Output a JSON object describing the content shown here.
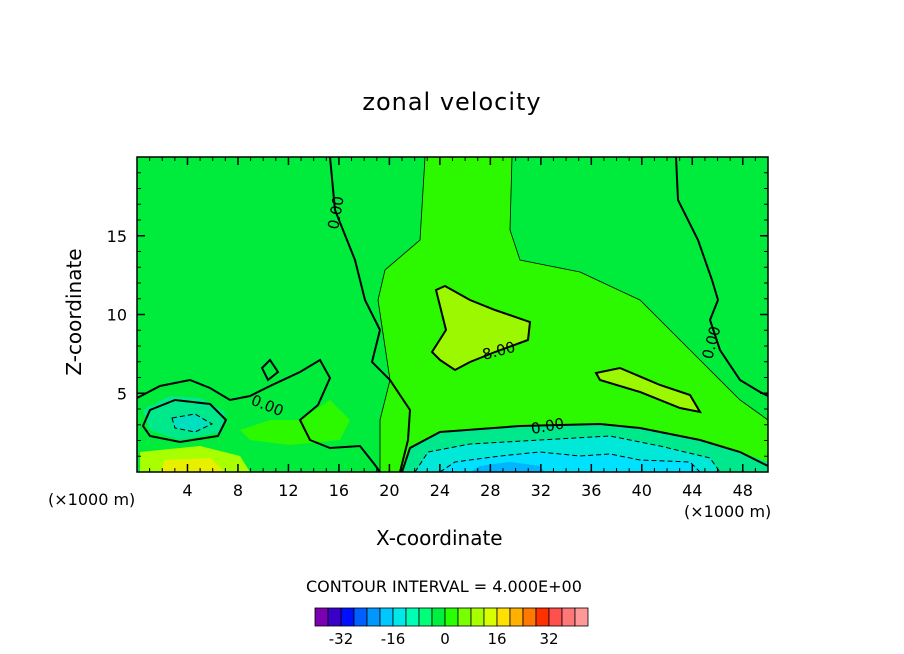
{
  "chart_data": {
    "type": "heatmap",
    "title": "zonal velocity",
    "xlabel": "X-coordinate",
    "ylabel": "Z-coordinate",
    "x_unit_left": "(×1000 m)",
    "x_unit_right": "(×1000 m)",
    "xlim": [
      0,
      50
    ],
    "ylim": [
      0,
      20
    ],
    "x_ticks": [
      "4",
      "8",
      "12",
      "16",
      "20",
      "24",
      "28",
      "32",
      "36",
      "40",
      "44",
      "48"
    ],
    "y_ticks": [
      "5",
      "10",
      "15"
    ],
    "x_tick_values": [
      4,
      8,
      12,
      16,
      20,
      24,
      28,
      32,
      36,
      40,
      44,
      48
    ],
    "y_tick_values": [
      5,
      10,
      15
    ],
    "contour_interval_text": "CONTOUR INTERVAL = 4.000E+00",
    "contour_interval": 4,
    "contour_labels": [
      "0.00",
      "0.00",
      "0.00",
      "0.00",
      "8.00"
    ],
    "colorbar": {
      "tick_labels": [
        "-32",
        "-16",
        "0",
        "16",
        "32"
      ],
      "tick_values": [
        -32,
        -16,
        0,
        16,
        32
      ],
      "colors": [
        "#7a00b0",
        "#3a00c8",
        "#0010ff",
        "#0060ff",
        "#0098ff",
        "#00c8ff",
        "#00e8e8",
        "#00ffb4",
        "#00ff78",
        "#00f040",
        "#28ff00",
        "#78ff00",
        "#a8ff00",
        "#d8ff00",
        "#ffe000",
        "#ffb000",
        "#ff7800",
        "#ff3000",
        "#ff5050",
        "#ff7878",
        "#ff9898"
      ]
    },
    "features": [
      {
        "region": "left-lower lobe near x=3, z=3",
        "value_range": [
          -4,
          0
        ]
      },
      {
        "region": "center plateau near x=28, z=9",
        "value_range": [
          8,
          12
        ]
      },
      {
        "region": "right plateau near x=40, z=5",
        "value_range": [
          8,
          12
        ]
      },
      {
        "region": "surface jet x=22–44, z<3",
        "value_range": [
          -16,
          -8
        ]
      },
      {
        "region": "surface max near x=4, z<1",
        "value_range": [
          12,
          16
        ]
      }
    ]
  }
}
